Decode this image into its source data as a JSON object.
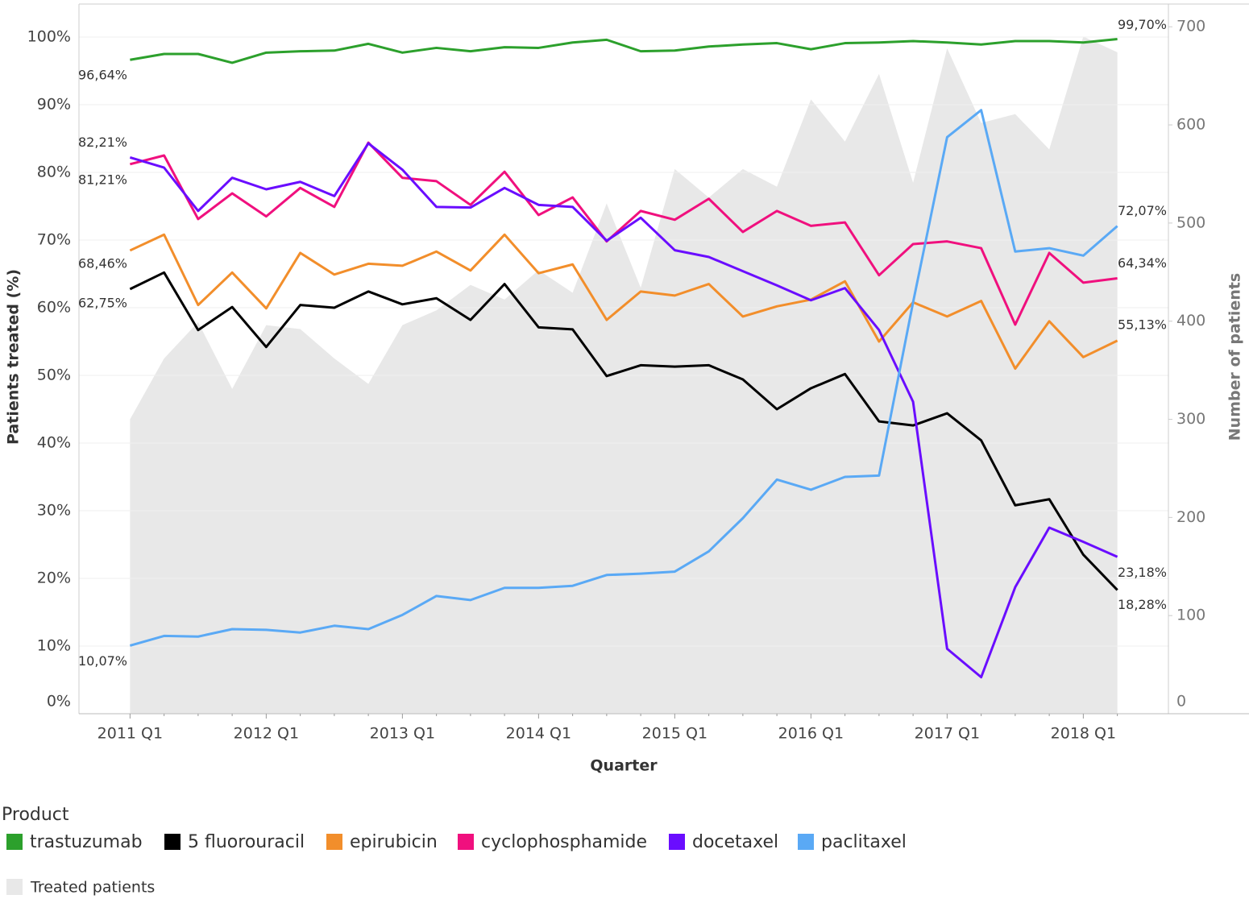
{
  "chart_data": {
    "type": "line",
    "xlabel": "Quarter",
    "ylabel": "Patients treated (%)",
    "y2label": "Number of patients",
    "legend_title": "Product",
    "categories": [
      "2011 Q1",
      null,
      null,
      null,
      "2012 Q1",
      null,
      null,
      null,
      "2013 Q1",
      null,
      null,
      null,
      "2014 Q1",
      null,
      null,
      null,
      "2015 Q1",
      null,
      null,
      null,
      "2016 Q1",
      null,
      null,
      null,
      "2017 Q1",
      null,
      null,
      null,
      "2018 Q1",
      null
    ],
    "ylim": [
      0,
      105
    ],
    "yticks": [
      {
        "value": 0,
        "label": "0%"
      },
      {
        "value": 10,
        "label": "10%"
      },
      {
        "value": 20,
        "label": "20%"
      },
      {
        "value": 30,
        "label": "30%"
      },
      {
        "value": 40,
        "label": "40%"
      },
      {
        "value": 50,
        "label": "50%"
      },
      {
        "value": 60,
        "label": "60%"
      },
      {
        "value": 70,
        "label": "70%"
      },
      {
        "value": 80,
        "label": "80%"
      },
      {
        "value": 90,
        "label": "90%"
      },
      {
        "value": 100,
        "label": "100%"
      }
    ],
    "y2lim": [
      0,
      724
    ],
    "y2ticks": [
      0,
      100,
      200,
      300,
      400,
      500,
      600,
      700
    ],
    "grid": true,
    "area": {
      "name": "Treated patients",
      "color": "#e8e8e8",
      "axis": "y2",
      "values": [
        300,
        362,
        399,
        331,
        396,
        392,
        362,
        336,
        396,
        411,
        437,
        422,
        452,
        429,
        520,
        434,
        555,
        526,
        555,
        537,
        626,
        583,
        652,
        541,
        678,
        602,
        611,
        575,
        690,
        674
      ]
    },
    "series": [
      {
        "name": "trastuzumab",
        "color": "#2ca02c",
        "values": [
          96.64,
          97.5,
          97.5,
          96.2,
          97.7,
          97.9,
          98.0,
          99.0,
          97.7,
          98.4,
          97.9,
          98.5,
          98.4,
          99.2,
          99.6,
          97.9,
          98.0,
          98.6,
          98.9,
          99.1,
          98.2,
          99.1,
          99.2,
          99.4,
          99.2,
          98.9,
          99.4,
          99.4,
          99.2,
          99.7
        ],
        "value_labels": [
          "96,64%",
          null,
          null,
          null,
          null,
          null,
          null,
          null,
          null,
          null,
          null,
          null,
          null,
          null,
          null,
          null,
          null,
          null,
          null,
          null,
          null,
          null,
          null,
          null,
          null,
          null,
          null,
          null,
          null,
          "99,70%"
        ]
      },
      {
        "name": "5 fluorouracil",
        "color": "#000000",
        "values": [
          62.75,
          65.2,
          56.7,
          60.1,
          54.2,
          60.4,
          60.0,
          62.4,
          60.5,
          61.4,
          58.2,
          63.5,
          57.1,
          56.8,
          49.9,
          51.5,
          51.3,
          51.5,
          49.4,
          45.0,
          48.1,
          50.2,
          43.2,
          42.6,
          44.4,
          40.4,
          30.8,
          31.7,
          23.5,
          18.28
        ],
        "value_labels": [
          "62,75%",
          null,
          null,
          null,
          null,
          null,
          null,
          null,
          null,
          null,
          null,
          null,
          null,
          null,
          null,
          null,
          null,
          null,
          null,
          null,
          null,
          null,
          null,
          null,
          null,
          null,
          null,
          null,
          null,
          "18,28%"
        ]
      },
      {
        "name": "epirubicin",
        "color": "#f28e2b",
        "values": [
          68.46,
          70.8,
          60.4,
          65.2,
          59.9,
          68.1,
          64.9,
          66.5,
          66.2,
          68.3,
          65.5,
          70.8,
          65.1,
          66.4,
          58.2,
          62.4,
          61.8,
          63.5,
          58.7,
          60.2,
          61.2,
          63.9,
          55.0,
          60.8,
          58.7,
          61.0,
          51.0,
          58.0,
          52.7,
          55.13
        ],
        "value_labels": [
          "68,46%",
          null,
          null,
          null,
          null,
          null,
          null,
          null,
          null,
          null,
          null,
          null,
          null,
          null,
          null,
          null,
          null,
          null,
          null,
          null,
          null,
          null,
          null,
          null,
          null,
          null,
          null,
          null,
          null,
          "55,13%"
        ]
      },
      {
        "name": "cyclophosphamide",
        "color": "#f0107e",
        "values": [
          81.21,
          82.5,
          73.1,
          76.9,
          73.5,
          77.7,
          74.9,
          84.4,
          79.2,
          78.7,
          75.2,
          80.1,
          73.7,
          76.3,
          69.8,
          74.3,
          73.0,
          76.1,
          71.2,
          74.3,
          72.1,
          72.6,
          64.8,
          69.4,
          69.8,
          68.8,
          57.5,
          68.1,
          63.7,
          64.34
        ],
        "value_labels": [
          "81,21%",
          null,
          null,
          null,
          null,
          null,
          null,
          null,
          null,
          null,
          null,
          null,
          null,
          null,
          null,
          null,
          null,
          null,
          null,
          null,
          null,
          null,
          null,
          null,
          null,
          null,
          null,
          null,
          null,
          "64,34%"
        ]
      },
      {
        "name": "docetaxel",
        "color": "#6a0dff",
        "values": [
          82.21,
          80.7,
          74.3,
          79.2,
          77.5,
          78.6,
          76.5,
          84.3,
          80.4,
          74.9,
          74.8,
          77.7,
          75.2,
          74.9,
          69.9,
          73.3,
          68.5,
          67.5,
          65.4,
          63.3,
          61.1,
          62.9,
          56.7,
          46.1,
          9.6,
          5.4,
          18.7,
          27.5,
          25.4,
          23.18
        ],
        "value_labels": [
          "82,21%",
          null,
          null,
          null,
          null,
          null,
          null,
          null,
          null,
          null,
          null,
          null,
          null,
          null,
          null,
          null,
          null,
          null,
          null,
          null,
          null,
          null,
          null,
          null,
          null,
          null,
          null,
          null,
          null,
          "23,18%"
        ]
      },
      {
        "name": "paclitaxel",
        "color": "#5aa9f5",
        "values": [
          10.07,
          11.5,
          11.4,
          12.5,
          12.4,
          12.0,
          13.0,
          12.5,
          14.6,
          17.4,
          16.8,
          18.6,
          18.6,
          18.9,
          20.5,
          20.7,
          21.0,
          24.0,
          28.9,
          34.6,
          33.1,
          35.0,
          35.2,
          60.8,
          85.2,
          89.2,
          68.3,
          68.8,
          67.7,
          72.07
        ],
        "value_labels": [
          "10,07%",
          null,
          null,
          null,
          null,
          null,
          null,
          null,
          null,
          null,
          null,
          null,
          null,
          null,
          null,
          null,
          null,
          null,
          null,
          null,
          null,
          null,
          null,
          null,
          null,
          null,
          null,
          null,
          null,
          "72,07%"
        ]
      }
    ]
  }
}
